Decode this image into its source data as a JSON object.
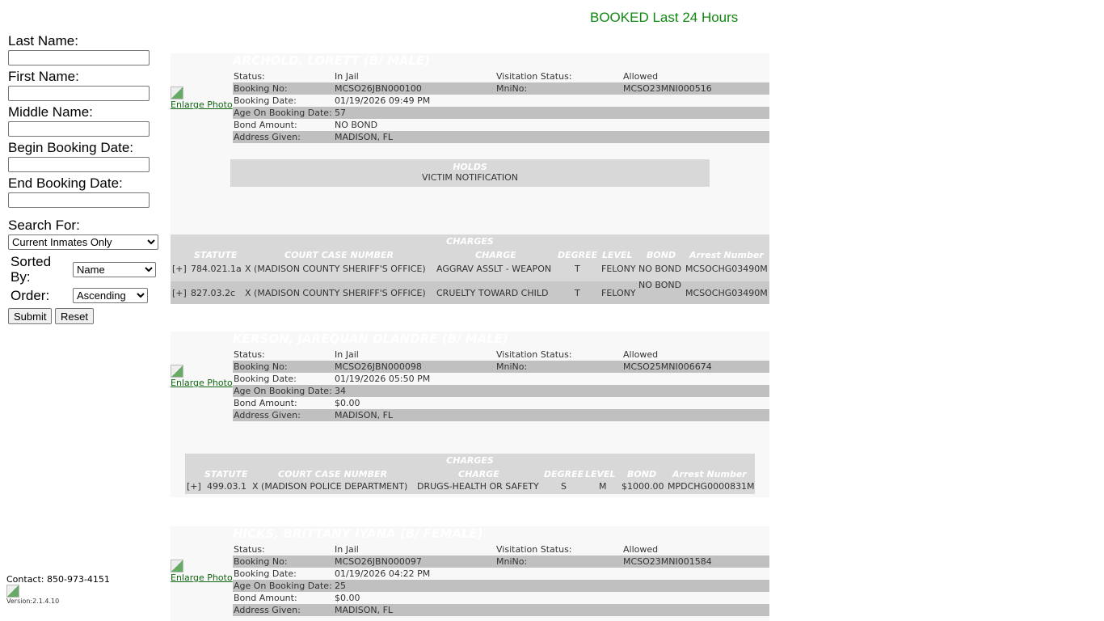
{
  "page_title": "BOOKED Last 24 Hours",
  "search_form": {
    "last_name_label": "Last Name:",
    "first_name_label": "First Name:",
    "middle_name_label": "Middle Name:",
    "begin_date_label": "Begin Booking Date:",
    "end_date_label": "End Booking Date:",
    "search_for_label": "Search For:",
    "search_for_value": "Current Inmates Only",
    "sorted_by_label": "Sorted By:",
    "sorted_by_value": "Name",
    "order_label": "Order:",
    "order_value": "Ascending",
    "submit_label": "Submit",
    "reset_label": "Reset"
  },
  "footer": {
    "contact": "Contact: 850-973-4151",
    "version": "Version:2.1.4.10"
  },
  "labels": {
    "enlarge_photo": "Enlarge Photo",
    "status": "Status:",
    "visitation_status": "Visitation Status:",
    "booking_no": "Booking No:",
    "mnino": "MniNo:",
    "booking_date": "Booking Date:",
    "age": "Age On Booking Date:",
    "bond_amount": "Bond Amount:",
    "address": "Address Given:",
    "holds": "HOLDS",
    "charges": "CHARGES",
    "charge_columns": [
      "STATUTE",
      "COURT CASE NUMBER",
      "CHARGE",
      "DEGREE",
      "LEVEL",
      "BOND",
      "Arrest Number"
    ]
  },
  "records": [
    {
      "name": "ARCHOLD, LORETT  (B/ MALE)",
      "status": "In Jail",
      "visitation": "Allowed",
      "booking_no": "MCSO26JBN000100",
      "mnino": "MCSO23MNI000516",
      "booking_date": "01/19/2026 09:49 PM",
      "age": "57",
      "bond": "NO BOND",
      "address": "MADISON, FL",
      "holds": [
        "VICTIM NOTIFICATION"
      ],
      "charges": [
        {
          "expand": "[+]",
          "statute": "784.021.1a",
          "case": "X (MADISON COUNTY SHERIFF'S OFFICE)",
          "charge": "AGGRAV ASSLT - WEAPON",
          "degree": "T",
          "level": "FELONY",
          "bond": "NO BOND",
          "arrest": "MCSOCHG03490M"
        },
        {
          "expand": "[+]",
          "statute": "827.03.2c",
          "case": "X (MADISON COUNTY SHERIFF'S OFFICE)",
          "charge": "CRUELTY TOWARD CHILD",
          "degree": "T",
          "level": "FELONY",
          "bond": "NO BOND",
          "arrest": "MCSOCHG03490M"
        }
      ]
    },
    {
      "name": "KERSON, JAREQUAN DLANDRE  (B/ MALE)",
      "status": "In Jail",
      "visitation": "Allowed",
      "booking_no": "MCSO26JBN000098",
      "mnino": "MCSO25MNI006674",
      "booking_date": "01/19/2026 05:50 PM",
      "age": "34",
      "bond": "$0.00",
      "address": "MADISON, FL",
      "charges": [
        {
          "expand": "[+]",
          "statute": "499.03.1",
          "case": "X (MADISON POLICE DEPARTMENT)",
          "charge": "DRUGS-HEALTH OR SAFETY",
          "degree": "S",
          "level": "M",
          "bond": "$1000.00",
          "arrest": "MPDCHG0000831M"
        }
      ]
    },
    {
      "name": "HICKS, BRITTANY IYANA  (B/ FEMALE)",
      "status": "In Jail",
      "visitation": "Allowed",
      "booking_no": "MCSO26JBN000097",
      "mnino": "MCSO23MNI001584",
      "booking_date": "01/19/2026 04:22 PM",
      "age": "25",
      "bond": "$0.00",
      "address": "MADISON, FL"
    }
  ]
}
